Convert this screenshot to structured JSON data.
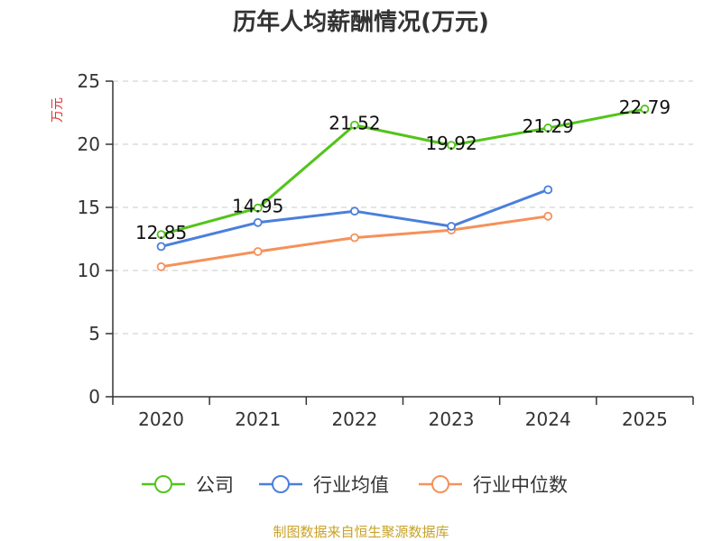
{
  "chart_data": {
    "type": "line",
    "title": "历年人均薪酬情况(万元)",
    "ylabel": "万元",
    "ylim": [
      0,
      25
    ],
    "yticks": [
      "0",
      "5",
      "10",
      "15",
      "20",
      "25"
    ],
    "categories": [
      "2020",
      "2021",
      "2022",
      "2023",
      "2024",
      "2025"
    ],
    "grid": true,
    "legend_position": "bottom",
    "series": [
      {
        "name": "公司",
        "color": "#52c41a",
        "values": [
          12.85,
          14.95,
          21.52,
          19.92,
          21.29,
          22.79
        ],
        "labels": [
          "12.85",
          "14.95",
          "21.52",
          "19.92",
          "21.29",
          "22.79"
        ]
      },
      {
        "name": "行业均值",
        "color": "#4a7fdb",
        "values": [
          11.9,
          13.8,
          14.7,
          13.5,
          16.4,
          null
        ]
      },
      {
        "name": "行业中位数",
        "color": "#f5915a",
        "values": [
          10.3,
          11.5,
          12.6,
          13.2,
          14.3,
          null
        ]
      }
    ],
    "source": "制图数据来自恒生聚源数据库",
    "ylabel_color": "#e03131",
    "source_color": "#c9a227"
  }
}
